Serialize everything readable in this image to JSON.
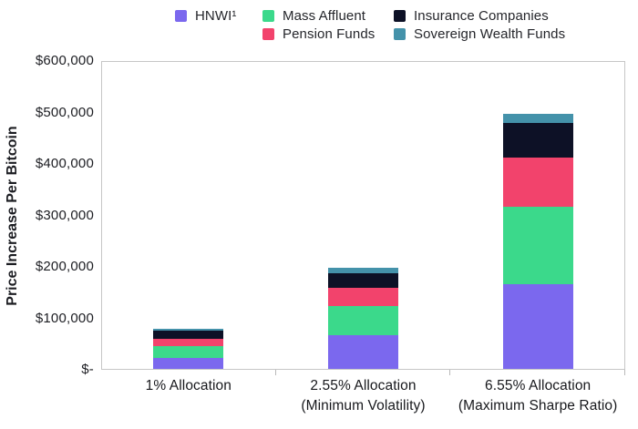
{
  "chart_data": {
    "type": "bar",
    "stacked": true,
    "title": "",
    "xlabel": "",
    "ylabel": "Price Increase Per Bitcoin",
    "ylim": [
      0,
      600000
    ],
    "grid": false,
    "legend_position": "top",
    "ytick_labels": [
      "$-",
      "$100,000",
      "$200,000",
      "$300,000",
      "$400,000",
      "$500,000",
      "$600,000"
    ],
    "categories": [
      [
        "1% Allocation"
      ],
      [
        "2.55% Allocation",
        "(Minimum Volatility)"
      ],
      [
        "6.55% Allocation",
        "(Maximum Sharpe Ratio)"
      ]
    ],
    "series": [
      {
        "name": "HNWI¹",
        "color": "#7b68ee",
        "values": [
          22000,
          65000,
          165000
        ]
      },
      {
        "name": "Mass Affluent",
        "color": "#3bd98b",
        "values": [
          22000,
          58000,
          150000
        ]
      },
      {
        "name": "Pension Funds",
        "color": "#f2436c",
        "values": [
          15000,
          35000,
          95000
        ]
      },
      {
        "name": "Insurance Companies",
        "color": "#0d1126",
        "values": [
          16000,
          28000,
          68000
        ]
      },
      {
        "name": "Sovereign Wealth Funds",
        "color": "#4492aa",
        "values": [
          3000,
          10000,
          18000
        ]
      }
    ],
    "stack_order_bottom_to_top": [
      "HNWI¹",
      "Mass Affluent",
      "Pension Funds",
      "Insurance Companies",
      "Sovereign Wealth Funds"
    ],
    "totals": [
      78000,
      196000,
      496000
    ]
  }
}
